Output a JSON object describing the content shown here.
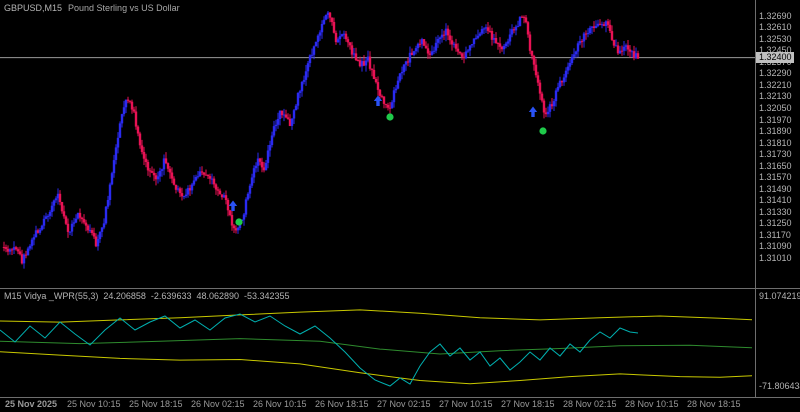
{
  "header": {
    "symbol": "GBPUSD,M15",
    "description": "Pound Sterling vs US Dollar"
  },
  "chart_data": {
    "type": "candlestick",
    "symbol": "GBPUSD",
    "timeframe": "M15",
    "title": "GBPUSD,M15 Pound Sterling vs US Dollar",
    "price_axis": {
      "ticks": [
        "1.32690",
        "1.32610",
        "1.32530",
        "1.32450",
        "1.32370",
        "1.32290",
        "1.32210",
        "1.32130",
        "1.32050",
        "1.31970",
        "1.31890",
        "1.31810",
        "1.31730",
        "1.31650",
        "1.31570",
        "1.31490",
        "1.31410",
        "1.31330",
        "1.31250",
        "1.31170",
        "1.31090",
        "1.31010"
      ],
      "ylim_top": 1.328,
      "ylim_bottom": 1.308,
      "current_price": "1.32400"
    },
    "time_axis": {
      "labels": [
        "25 Nov 2025",
        "25 Nov 10:15",
        "25 Nov 18:15",
        "26 Nov 02:15",
        "26 Nov 10:15",
        "26 Nov 18:15",
        "27 Nov 02:15",
        "27 Nov 10:15",
        "27 Nov 18:15",
        "28 Nov 02:15",
        "28 Nov 10:15",
        "28 Nov 18:15"
      ]
    },
    "price_path": [
      [
        0,
        1.3115
      ],
      [
        8,
        1.3105
      ],
      [
        16,
        1.3109
      ],
      [
        22,
        1.3099
      ],
      [
        30,
        1.3111
      ],
      [
        45,
        1.3128
      ],
      [
        58,
        1.3144
      ],
      [
        68,
        1.3119
      ],
      [
        78,
        1.3131
      ],
      [
        88,
        1.3122
      ],
      [
        96,
        1.3111
      ],
      [
        104,
        1.3127
      ],
      [
        112,
        1.3158
      ],
      [
        120,
        1.3196
      ],
      [
        127,
        1.3213
      ],
      [
        133,
        1.3204
      ],
      [
        140,
        1.3178
      ],
      [
        148,
        1.3163
      ],
      [
        156,
        1.3156
      ],
      [
        165,
        1.3169
      ],
      [
        175,
        1.3151
      ],
      [
        185,
        1.3143
      ],
      [
        195,
        1.3156
      ],
      [
        205,
        1.3161
      ],
      [
        215,
        1.3151
      ],
      [
        225,
        1.3141
      ],
      [
        235,
        1.3119
      ],
      [
        242,
        1.3127
      ],
      [
        252,
        1.3158
      ],
      [
        258,
        1.3172
      ],
      [
        264,
        1.3161
      ],
      [
        272,
        1.3188
      ],
      [
        280,
        1.3201
      ],
      [
        290,
        1.3194
      ],
      [
        298,
        1.3214
      ],
      [
        306,
        1.3231
      ],
      [
        314,
        1.3248
      ],
      [
        322,
        1.3262
      ],
      [
        329,
        1.3272
      ],
      [
        336,
        1.325
      ],
      [
        344,
        1.3257
      ],
      [
        352,
        1.3243
      ],
      [
        360,
        1.3234
      ],
      [
        368,
        1.3239
      ],
      [
        376,
        1.3221
      ],
      [
        384,
        1.3209
      ],
      [
        390,
        1.3206
      ],
      [
        398,
        1.3224
      ],
      [
        406,
        1.3236
      ],
      [
        414,
        1.3246
      ],
      [
        422,
        1.3252
      ],
      [
        430,
        1.3243
      ],
      [
        438,
        1.3251
      ],
      [
        446,
        1.3258
      ],
      [
        454,
        1.3248
      ],
      [
        462,
        1.324
      ],
      [
        470,
        1.3248
      ],
      [
        478,
        1.3255
      ],
      [
        486,
        1.326
      ],
      [
        494,
        1.3252
      ],
      [
        502,
        1.3244
      ],
      [
        510,
        1.3255
      ],
      [
        518,
        1.3264
      ],
      [
        524,
        1.327
      ],
      [
        531,
        1.3243
      ],
      [
        538,
        1.3223
      ],
      [
        545,
        1.3199
      ],
      [
        552,
        1.3208
      ],
      [
        560,
        1.3222
      ],
      [
        568,
        1.3234
      ],
      [
        576,
        1.3246
      ],
      [
        584,
        1.3255
      ],
      [
        592,
        1.326
      ],
      [
        600,
        1.3265
      ],
      [
        607,
        1.3263
      ],
      [
        613,
        1.3251
      ],
      [
        619,
        1.3244
      ],
      [
        627,
        1.3249
      ],
      [
        633,
        1.3242
      ],
      [
        638,
        1.324
      ]
    ],
    "markers": {
      "buy_arrows": [
        [
          233,
          206
        ],
        [
          378,
          101
        ],
        [
          533,
          112
        ]
      ],
      "dots": [
        [
          239,
          222
        ],
        [
          390,
          117
        ],
        [
          543,
          131
        ]
      ]
    },
    "indicator": {
      "label": "M15 Vidya _WPR(55,3)",
      "values": [
        "24.206858",
        "-2.639633",
        "48.062890",
        "-53.342355"
      ],
      "axis": {
        "max_label": "91.074219",
        "min_label": "-71.806434",
        "ylim_top": 104,
        "ylim_bottom": -92
      },
      "series": {
        "upper_band": [
          [
            0,
            46
          ],
          [
            60,
            44
          ],
          [
            120,
            48
          ],
          [
            180,
            52
          ],
          [
            240,
            57
          ],
          [
            300,
            62
          ],
          [
            360,
            66
          ],
          [
            420,
            60
          ],
          [
            480,
            52
          ],
          [
            540,
            48
          ],
          [
            600,
            52
          ],
          [
            660,
            55
          ],
          [
            720,
            51
          ],
          [
            752,
            48.1
          ]
        ],
        "lower_band": [
          [
            0,
            -10
          ],
          [
            60,
            -16
          ],
          [
            120,
            -22
          ],
          [
            180,
            -25
          ],
          [
            240,
            -24
          ],
          [
            300,
            -32
          ],
          [
            360,
            -48
          ],
          [
            420,
            -62
          ],
          [
            470,
            -68
          ],
          [
            520,
            -62
          ],
          [
            570,
            -55
          ],
          [
            620,
            -50
          ],
          [
            680,
            -55
          ],
          [
            720,
            -56
          ],
          [
            752,
            -53.3
          ]
        ],
        "signal": [
          [
            0,
            9
          ],
          [
            80,
            5
          ],
          [
            160,
            9
          ],
          [
            240,
            14
          ],
          [
            320,
            9
          ],
          [
            380,
            -5
          ],
          [
            440,
            -14
          ],
          [
            500,
            -8
          ],
          [
            560,
            -4
          ],
          [
            620,
            1
          ],
          [
            690,
            2
          ],
          [
            752,
            -2.6
          ]
        ],
        "main": [
          [
            0,
            29.6
          ],
          [
            15,
            7.8
          ],
          [
            30,
            36.9
          ],
          [
            45,
            15.1
          ],
          [
            60,
            44.1
          ],
          [
            75,
            22.3
          ],
          [
            90,
            2.4
          ],
          [
            105,
            29.6
          ],
          [
            120,
            51.4
          ],
          [
            135,
            29.6
          ],
          [
            150,
            44.1
          ],
          [
            165,
            55.0
          ],
          [
            180,
            33.2
          ],
          [
            195,
            47.7
          ],
          [
            210,
            29.6
          ],
          [
            225,
            51.4
          ],
          [
            240,
            58.6
          ],
          [
            255,
            44.1
          ],
          [
            270,
            55.0
          ],
          [
            285,
            36.9
          ],
          [
            300,
            22.3
          ],
          [
            315,
            36.9
          ],
          [
            330,
            15.1
          ],
          [
            345,
            -10.3
          ],
          [
            360,
            -39.4
          ],
          [
            375,
            -61.1
          ],
          [
            390,
            -72.0
          ],
          [
            400,
            -57.5
          ],
          [
            410,
            -68.4
          ],
          [
            420,
            -35.7
          ],
          [
            430,
            -10.3
          ],
          [
            440,
            4.2
          ],
          [
            450,
            -17.6
          ],
          [
            460,
            -3.1
          ],
          [
            470,
            -24.8
          ],
          [
            480,
            -10.3
          ],
          [
            490,
            -35.7
          ],
          [
            500,
            -21.2
          ],
          [
            510,
            -43.0
          ],
          [
            520,
            -28.5
          ],
          [
            530,
            -10.3
          ],
          [
            540,
            -24.8
          ],
          [
            550,
            -3.1
          ],
          [
            560,
            -17.6
          ],
          [
            570,
            4.2
          ],
          [
            580,
            -10.3
          ],
          [
            590,
            11.4
          ],
          [
            600,
            26.0
          ],
          [
            610,
            15.1
          ],
          [
            620,
            33.2
          ],
          [
            630,
            26.0
          ],
          [
            638,
            24.2
          ]
        ]
      }
    },
    "colors": {
      "background": "#000000",
      "bull": "#2a2af0",
      "bear": "#e81254",
      "current_price_line": "#9a9a9a",
      "price_tag_bg": "#c0c0c0",
      "arrow": "#2a52f5",
      "dot": "#1fca4a",
      "band": "#c8c800",
      "signal_line": "#2e8b2e",
      "main_line": "#00b0b0",
      "axis_text": "#b4b4b4"
    }
  }
}
